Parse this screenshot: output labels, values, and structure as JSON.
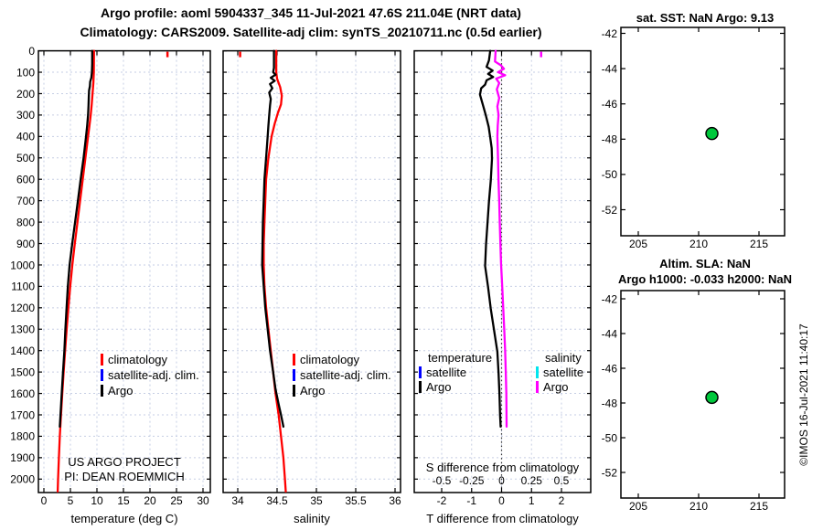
{
  "title": {
    "line1": "Argo profile: aoml 5904337_345 11-Jul-2021 47.6S 211.04E (NRT data)",
    "line2": "Climatology: CARS2009. Satellite-adj clim: synTS_20210711.nc (0.5d earlier)"
  },
  "watermark": "©IMOS 16-Jul-2021 11:40:17",
  "colors": {
    "climatology": "#ff0000",
    "satellite_adj_clim": "#0000ff",
    "argo": "#000000",
    "satellite_salinity": "#00e5ee",
    "argo_salinity": "#ff00ff",
    "location_marker": "#00c83c",
    "grid": "#c6cee4"
  },
  "chart_data": [
    {
      "id": "temperature-profile",
      "type": "line",
      "xlabel": "temperature (deg C)",
      "xtick_values": [
        0,
        5,
        10,
        15,
        20,
        25,
        30
      ],
      "xtick_labels": [
        "0",
        "5",
        "10",
        "15",
        "20",
        "25",
        "30"
      ],
      "yticks": [
        0,
        100,
        200,
        300,
        400,
        500,
        600,
        700,
        800,
        900,
        1000,
        1100,
        1200,
        1300,
        1400,
        1500,
        1600,
        1700,
        1800,
        1900,
        2000
      ],
      "xlim": [
        -1,
        31.4
      ],
      "ylim": [
        0,
        2060
      ],
      "grid": true,
      "legend": [
        {
          "label": "climatology",
          "color": "#ff0000"
        },
        {
          "label": "satellite-adj. clim.",
          "color": "#0000ff"
        },
        {
          "label": "Argo",
          "color": "#000000"
        }
      ],
      "annotation": [
        "US ARGO PROJECT",
        "PI: DEAN ROEMMICH"
      ],
      "surface_marks": [
        {
          "color": "#ff0000",
          "value": 23.3
        }
      ],
      "series": [
        {
          "name": "climatology",
          "color": "#ff0000",
          "points": [
            [
              0,
              9.45
            ],
            [
              100,
              9.42
            ],
            [
              150,
              9.32
            ],
            [
              200,
              9.18
            ],
            [
              250,
              9.02
            ],
            [
              300,
              8.82
            ],
            [
              350,
              8.58
            ],
            [
              400,
              8.32
            ],
            [
              500,
              7.82
            ],
            [
              600,
              7.32
            ],
            [
              700,
              6.82
            ],
            [
              800,
              6.32
            ],
            [
              900,
              5.82
            ],
            [
              1000,
              5.36
            ],
            [
              1100,
              4.96
            ],
            [
              1200,
              4.62
            ],
            [
              1300,
              4.3
            ],
            [
              1400,
              4.0
            ],
            [
              1500,
              3.72
            ],
            [
              1600,
              3.46
            ],
            [
              1700,
              3.22
            ],
            [
              1800,
              3.0
            ],
            [
              1900,
              2.82
            ],
            [
              2000,
              2.67
            ],
            [
              2058,
              2.6
            ]
          ]
        },
        {
          "name": "Argo",
          "color": "#000000",
          "points": [
            [
              0,
              9.1
            ],
            [
              60,
              9.1
            ],
            [
              100,
              9.05
            ],
            [
              125,
              8.95
            ],
            [
              145,
              8.72
            ],
            [
              165,
              8.68
            ],
            [
              185,
              8.52
            ],
            [
              215,
              8.47
            ],
            [
              255,
              8.42
            ],
            [
              300,
              8.32
            ],
            [
              350,
              8.16
            ],
            [
              400,
              7.95
            ],
            [
              500,
              7.48
            ],
            [
              600,
              6.93
            ],
            [
              700,
              6.42
            ],
            [
              800,
              5.88
            ],
            [
              900,
              5.35
            ],
            [
              1000,
              4.85
            ],
            [
              1100,
              4.52
            ],
            [
              1200,
              4.28
            ],
            [
              1300,
              4.06
            ],
            [
              1400,
              3.87
            ],
            [
              1500,
              3.6
            ],
            [
              1600,
              3.36
            ],
            [
              1755,
              3.0
            ]
          ]
        }
      ]
    },
    {
      "id": "salinity-profile",
      "type": "line",
      "xlabel": "salinity",
      "xtick_values": [
        34,
        34.5,
        35,
        35.5,
        36
      ],
      "xtick_labels": [
        "34",
        "34.5",
        "35",
        "35.5",
        "36"
      ],
      "xlim": [
        33.8,
        36.1
      ],
      "ylim": [
        0,
        2060
      ],
      "grid": true,
      "legend": [
        {
          "label": "climatology",
          "color": "#ff0000"
        },
        {
          "label": "satellite-adj. clim.",
          "color": "#0000ff"
        },
        {
          "label": "Argo",
          "color": "#000000"
        }
      ],
      "surface_marks": [
        {
          "color": "#ff0000",
          "value": 34.03
        }
      ],
      "series": [
        {
          "name": "climatology",
          "color": "#ff0000",
          "points": [
            [
              0,
              34.49
            ],
            [
              100,
              34.49
            ],
            [
              130,
              34.5
            ],
            [
              170,
              34.54
            ],
            [
              210,
              34.56
            ],
            [
              250,
              34.55
            ],
            [
              290,
              34.51
            ],
            [
              340,
              34.47
            ],
            [
              400,
              34.43
            ],
            [
              500,
              34.39
            ],
            [
              600,
              34.36
            ],
            [
              700,
              34.35
            ],
            [
              800,
              34.34
            ],
            [
              900,
              34.33
            ],
            [
              1000,
              34.33
            ],
            [
              1100,
              34.34
            ],
            [
              1200,
              34.36
            ],
            [
              1300,
              34.39
            ],
            [
              1400,
              34.42
            ],
            [
              1500,
              34.45
            ],
            [
              1600,
              34.48
            ],
            [
              1700,
              34.52
            ],
            [
              1800,
              34.55
            ],
            [
              1900,
              34.58
            ],
            [
              2000,
              34.6
            ],
            [
              2058,
              34.61
            ]
          ]
        },
        {
          "name": "Argo",
          "color": "#000000",
          "points": [
            [
              0,
              34.46
            ],
            [
              80,
              34.46
            ],
            [
              100,
              34.45
            ],
            [
              112,
              34.48
            ],
            [
              126,
              34.42
            ],
            [
              140,
              34.47
            ],
            [
              155,
              34.41
            ],
            [
              175,
              34.44
            ],
            [
              195,
              34.4
            ],
            [
              225,
              34.42
            ],
            [
              255,
              34.41
            ],
            [
              300,
              34.4
            ],
            [
              350,
              34.39
            ],
            [
              400,
              34.38
            ],
            [
              500,
              34.36
            ],
            [
              600,
              34.34
            ],
            [
              700,
              34.33
            ],
            [
              800,
              34.32
            ],
            [
              900,
              34.315
            ],
            [
              1000,
              34.31
            ],
            [
              1100,
              34.33
            ],
            [
              1200,
              34.35
            ],
            [
              1300,
              34.38
            ],
            [
              1400,
              34.41
            ],
            [
              1500,
              34.45
            ],
            [
              1580,
              34.48
            ],
            [
              1650,
              34.52
            ],
            [
              1700,
              34.55
            ],
            [
              1755,
              34.58
            ]
          ]
        }
      ]
    },
    {
      "id": "difference-profile",
      "type": "line",
      "xlabel": "T difference from climatology",
      "xtick_values": [
        -2,
        -1,
        0,
        1,
        2
      ],
      "xtick_labels": [
        "-2",
        "-1",
        "0",
        "1",
        "2"
      ],
      "top_axis_label": "S difference from climatology",
      "stick_values": [
        -0.5,
        -0.25,
        0,
        0.25,
        0.5
      ],
      "stick_labels": [
        "-0.5",
        "-0.25",
        "0",
        "0.25",
        "0.5"
      ],
      "xlim": [
        -2.9,
        3.0
      ],
      "ylim": [
        0,
        2060
      ],
      "grid": true,
      "zero_line": true,
      "legend_groups": [
        {
          "header": "temperature",
          "items": [
            {
              "label": "satellite",
              "color": "#0000ff"
            },
            {
              "label": "Argo",
              "color": "#000000"
            }
          ]
        },
        {
          "header": "salinity",
          "items": [
            {
              "label": "satellite",
              "color": "#00e5ee"
            },
            {
              "label": "Argo",
              "color": "#ff00ff"
            }
          ]
        }
      ],
      "surface_marks": [
        {
          "color": "#ff00ff",
          "value": 0.33,
          "scale": "s"
        }
      ],
      "series": [
        {
          "name": "Argo T difference",
          "color": "#000000",
          "scale": "t",
          "points": [
            [
              0,
              -0.38
            ],
            [
              45,
              -0.42
            ],
            [
              75,
              -0.5
            ],
            [
              92,
              -0.3
            ],
            [
              108,
              -0.45
            ],
            [
              122,
              -0.28
            ],
            [
              138,
              -0.5
            ],
            [
              158,
              -0.55
            ],
            [
              175,
              -0.68
            ],
            [
              205,
              -0.72
            ],
            [
              235,
              -0.66
            ],
            [
              265,
              -0.6
            ],
            [
              305,
              -0.52
            ],
            [
              355,
              -0.43
            ],
            [
              405,
              -0.38
            ],
            [
              455,
              -0.33
            ],
            [
              505,
              -0.32
            ],
            [
              605,
              -0.36
            ],
            [
              705,
              -0.42
            ],
            [
              805,
              -0.47
            ],
            [
              905,
              -0.52
            ],
            [
              1005,
              -0.55
            ],
            [
              1105,
              -0.45
            ],
            [
              1205,
              -0.36
            ],
            [
              1305,
              -0.25
            ],
            [
              1405,
              -0.14
            ],
            [
              1505,
              -0.1
            ],
            [
              1605,
              -0.07
            ],
            [
              1705,
              -0.05
            ],
            [
              1755,
              -0.03
            ]
          ]
        },
        {
          "name": "Argo S difference",
          "color": "#ff00ff",
          "scale": "s",
          "points": [
            [
              0,
              -0.05
            ],
            [
              50,
              -0.055
            ],
            [
              68,
              -0.005
            ],
            [
              84,
              0.02
            ],
            [
              100,
              -0.03
            ],
            [
              114,
              0.03
            ],
            [
              130,
              -0.045
            ],
            [
              150,
              -0.02
            ],
            [
              180,
              -0.04
            ],
            [
              220,
              -0.02
            ],
            [
              260,
              -0.035
            ],
            [
              300,
              -0.025
            ],
            [
              350,
              -0.032
            ],
            [
              400,
              -0.035
            ],
            [
              500,
              -0.03
            ],
            [
              600,
              -0.026
            ],
            [
              700,
              -0.02
            ],
            [
              800,
              -0.015
            ],
            [
              900,
              -0.01
            ],
            [
              1000,
              -0.004
            ],
            [
              1100,
              0.005
            ],
            [
              1200,
              0.014
            ],
            [
              1300,
              0.022
            ],
            [
              1400,
              0.03
            ],
            [
              1500,
              0.035
            ],
            [
              1600,
              0.04
            ],
            [
              1755,
              0.042
            ]
          ]
        }
      ]
    },
    {
      "id": "sst-map",
      "type": "scatter",
      "title": "sat. SST: NaN Argo: 9.13",
      "xtick_values": [
        205,
        210,
        215
      ],
      "xtick_labels": [
        "205",
        "210",
        "215"
      ],
      "ytick_values": [
        -42,
        -44,
        -46,
        -48,
        -50,
        -52
      ],
      "ytick_labels": [
        "-42",
        "-44",
        "-46",
        "-48",
        "-50",
        "-52"
      ],
      "xlim": [
        203.6,
        217.1
      ],
      "ylim": [
        -54.3,
        -41.7
      ],
      "grid": false,
      "point": {
        "lon": 211.1,
        "lat": -47.68,
        "color": "#00c83c"
      }
    },
    {
      "id": "sla-map",
      "type": "scatter",
      "title1": "Altim. SLA: NaN",
      "title2": "Argo h1000: -0.033 h2000: NaN",
      "xtick_values": [
        205,
        210,
        215
      ],
      "xtick_labels": [
        "205",
        "210",
        "215"
      ],
      "ytick_values": [
        -42,
        -44,
        -46,
        -48,
        -50,
        -52
      ],
      "ytick_labels": [
        "-42",
        "-44",
        "-46",
        "-48",
        "-50",
        "-52"
      ],
      "xlim": [
        203.6,
        217.1
      ],
      "ylim": [
        -53.9,
        -41.6
      ],
      "grid": false,
      "point": {
        "lon": 211.1,
        "lat": -47.68,
        "color": "#00c83c"
      }
    }
  ]
}
